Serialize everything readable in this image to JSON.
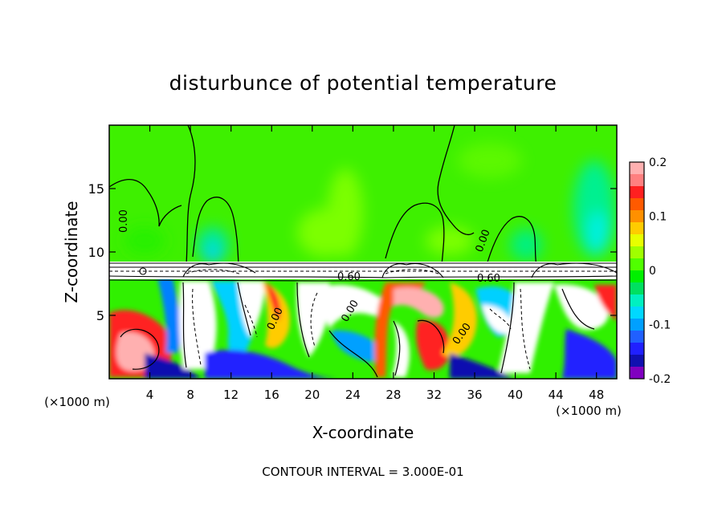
{
  "chart_data": {
    "type": "heatmap",
    "title": "disturbunce of potential temperature",
    "xlabel": "X-coordinate",
    "ylabel": "Z-coordinate",
    "x_unit_left": "(×1000 m)",
    "x_unit_right": "(×1000 m)",
    "xlim": [
      0,
      50
    ],
    "ylim": [
      0,
      20
    ],
    "x_ticks": [
      "4",
      "8",
      "12",
      "16",
      "20",
      "24",
      "28",
      "32",
      "36",
      "40",
      "44",
      "48"
    ],
    "y_ticks": [
      "5",
      "10",
      "15"
    ],
    "footer": "CONTOUR INTERVAL = 3.000E-01",
    "contour_labels": [
      "0.00",
      "0.00",
      "0.60",
      "0.60",
      "0.00",
      "0.00",
      "0.00"
    ],
    "colorbar": {
      "min": -0.2,
      "max": 0.2,
      "tick_labels": [
        "0.2",
        "0.1",
        "0",
        "-0.1",
        "-0.2"
      ],
      "colors": [
        "#ffb0b0",
        "#ff8080",
        "#ff2020",
        "#ff5a00",
        "#ff9000",
        "#ffcc00",
        "#e8ff00",
        "#a0ff00",
        "#50ff00",
        "#00f000",
        "#00e060",
        "#00f0c0",
        "#00d8ff",
        "#00a0ff",
        "#2060ff",
        "#2020ff",
        "#1010b0",
        "#8000c0"
      ]
    }
  }
}
